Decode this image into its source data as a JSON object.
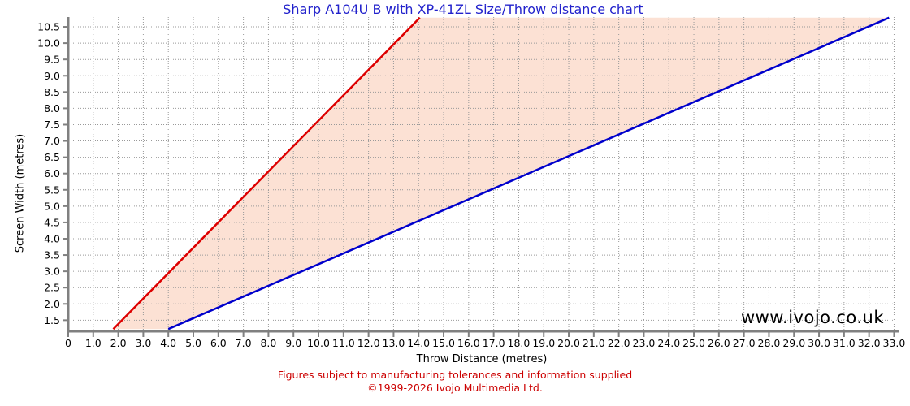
{
  "title": "Sharp A104U B with XP-41ZL Size/Throw distance chart",
  "watermark": "www.ivojo.co.uk",
  "footer": {
    "line1": "Figures subject to manufacturing tolerances and information supplied",
    "line2": "©1999-2026 Ivojo Multimedia Ltd."
  },
  "colors": {
    "title": "#2222cc",
    "red_line": "#dd0000",
    "blue_line": "#0000cc",
    "shade": "#fce1d4",
    "grid": "#999999",
    "axis": "#808080",
    "tick_text": "#000000",
    "footer": "#cc0000"
  },
  "chart_data": {
    "type": "line",
    "title": "Sharp A104U B with XP-41ZL Size/Throw distance chart",
    "xlabel": "Throw Distance (metres)",
    "ylabel": "Screen Width (metres)",
    "xlim": [
      0,
      33.05
    ],
    "ylim": [
      1.21,
      10.8
    ],
    "grid": true,
    "legend": "none",
    "xticks": {
      "values": [
        0,
        1,
        2,
        3,
        4,
        5,
        6,
        7,
        8,
        9,
        10,
        11,
        12,
        13,
        14,
        15,
        16,
        17,
        18,
        19,
        20,
        21,
        22,
        23,
        24,
        25,
        26,
        27,
        28,
        29,
        30,
        31,
        32,
        33
      ],
      "labels": [
        "0",
        "1.0",
        "2.0",
        "3.0",
        "4.0",
        "5.0",
        "6.0",
        "7.0",
        "8.0",
        "9.0",
        "10.0",
        "11.0",
        "12.0",
        "13.0",
        "14.0",
        "15.0",
        "16.0",
        "17.0",
        "18.0",
        "19.0",
        "20.0",
        "21.0",
        "22.0",
        "23.0",
        "24.0",
        "25.0",
        "26.0",
        "27.0",
        "28.0",
        "29.0",
        "30.0",
        "31.0",
        "32.0",
        "33.0"
      ]
    },
    "yticks": {
      "values": [
        1.5,
        2,
        2.5,
        3,
        3.5,
        4,
        4.5,
        5,
        5.5,
        6,
        6.5,
        7,
        7.5,
        8,
        8.5,
        9,
        9.5,
        10,
        10.5
      ],
      "labels": [
        "1.5",
        "2.0",
        "2.5",
        "3.0",
        "3.5",
        "4.0",
        "4.5",
        "5.0",
        "5.5",
        "6.0",
        "6.5",
        "7.0",
        "7.5",
        "8.0",
        "8.5",
        "9.0",
        "9.5",
        "10.0",
        "10.5"
      ]
    },
    "series": [
      {
        "name": "red",
        "color": "#dd0000",
        "points": [
          [
            1.8,
            1.23
          ],
          [
            14.05,
            10.78
          ]
        ]
      },
      {
        "name": "blue",
        "color": "#0000cc",
        "points": [
          [
            4.0,
            1.23
          ],
          [
            32.8,
            10.78
          ]
        ]
      }
    ],
    "shaded_region": {
      "color": "#fce1d4",
      "points": [
        [
          1.8,
          1.23
        ],
        [
          14.05,
          10.78
        ],
        [
          32.8,
          10.78
        ],
        [
          4.0,
          1.23
        ]
      ]
    }
  }
}
